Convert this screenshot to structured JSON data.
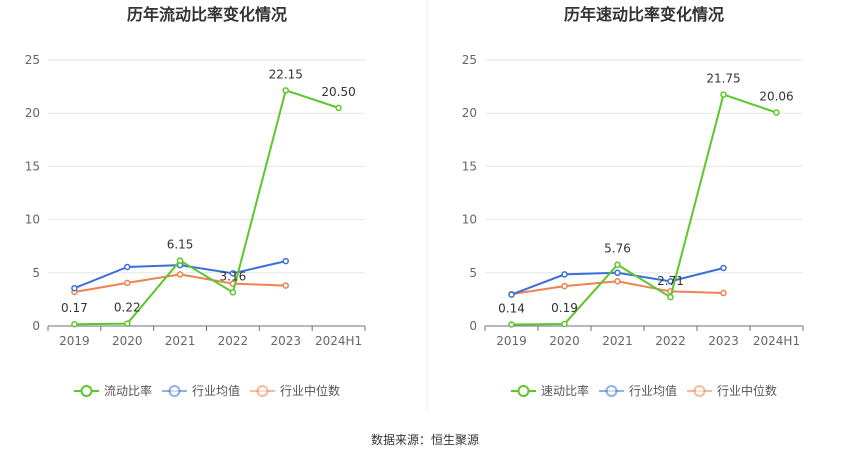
{
  "source_note": "数据来源：恒生聚源",
  "chart_data": [
    {
      "type": "line",
      "title": "历年流动比率变化情况",
      "categories": [
        "2019",
        "2020",
        "2021",
        "2022",
        "2023",
        "2024H1"
      ],
      "ylim": [
        0,
        25
      ],
      "yticks": [
        0,
        5,
        10,
        15,
        20,
        25
      ],
      "series": [
        {
          "name": "流动比率",
          "color": "#5cc72c",
          "values": [
            0.17,
            0.22,
            6.15,
            3.16,
            22.15,
            20.5
          ],
          "labels": [
            "0.17",
            "0.22",
            "6.15",
            "3.16",
            "22.15",
            "20.50"
          ]
        },
        {
          "name": "行业均值",
          "color": "#3a6fd8",
          "values": [
            3.55,
            5.55,
            5.72,
            4.95,
            6.1,
            null
          ]
        },
        {
          "name": "行业中位数",
          "color": "#ef8250",
          "values": [
            3.2,
            4.05,
            4.85,
            3.98,
            3.8,
            null
          ]
        }
      ]
    },
    {
      "type": "line",
      "title": "历年速动比率变化情况",
      "categories": [
        "2019",
        "2020",
        "2021",
        "2022",
        "2023",
        "2024H1"
      ],
      "ylim": [
        0,
        25
      ],
      "yticks": [
        0,
        5,
        10,
        15,
        20,
        25
      ],
      "series": [
        {
          "name": "速动比率",
          "color": "#5cc72c",
          "values": [
            0.14,
            0.19,
            5.76,
            2.71,
            21.75,
            20.06
          ],
          "labels": [
            "0.14",
            "0.19",
            "5.76",
            "2.71",
            "21.75",
            "20.06"
          ]
        },
        {
          "name": "行业均值",
          "color": "#3a6fd8",
          "values": [
            2.95,
            4.85,
            5.0,
            4.2,
            5.45,
            null
          ]
        },
        {
          "name": "行业中位数",
          "color": "#ef8250",
          "values": [
            3.0,
            3.75,
            4.2,
            3.25,
            3.1,
            null
          ]
        }
      ]
    }
  ]
}
